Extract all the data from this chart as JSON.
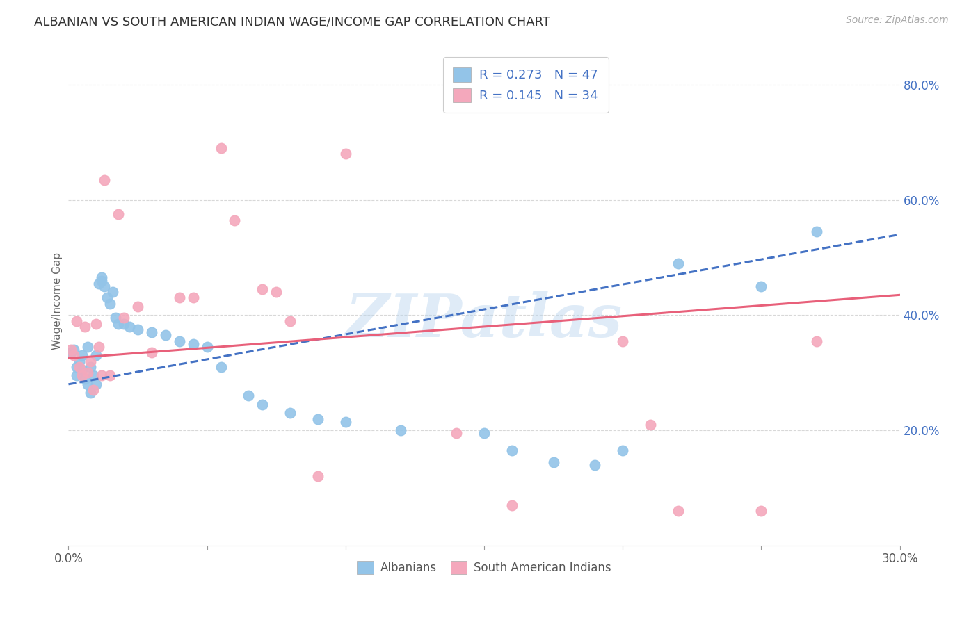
{
  "title": "ALBANIAN VS SOUTH AMERICAN INDIAN WAGE/INCOME GAP CORRELATION CHART",
  "source": "Source: ZipAtlas.com",
  "ylabel": "Wage/Income Gap",
  "xlim": [
    0.0,
    0.3
  ],
  "ylim": [
    0.0,
    0.85
  ],
  "x_ticks": [
    0.0,
    0.05,
    0.1,
    0.15,
    0.2,
    0.25,
    0.3
  ],
  "x_tick_labels": [
    "0.0%",
    "",
    "",
    "",
    "",
    "",
    "30.0%"
  ],
  "y_ticks_right": [
    0.2,
    0.4,
    0.6,
    0.8
  ],
  "y_tick_labels_right": [
    "20.0%",
    "40.0%",
    "60.0%",
    "80.0%"
  ],
  "albanian_color": "#93c4e8",
  "sai_color": "#f4a8bc",
  "line_albanian_color": "#4472c4",
  "line_sai_color": "#e8607a",
  "r_albanian": 0.273,
  "n_albanian": 47,
  "r_sai": 0.145,
  "n_sai": 34,
  "legend_color": "#4472c4",
  "albanian_x": [
    0.001,
    0.002,
    0.003,
    0.003,
    0.004,
    0.005,
    0.005,
    0.006,
    0.007,
    0.007,
    0.008,
    0.008,
    0.009,
    0.01,
    0.01,
    0.011,
    0.012,
    0.012,
    0.013,
    0.014,
    0.015,
    0.016,
    0.017,
    0.018,
    0.02,
    0.022,
    0.025,
    0.03,
    0.035,
    0.04,
    0.045,
    0.05,
    0.055,
    0.065,
    0.07,
    0.08,
    0.09,
    0.1,
    0.12,
    0.15,
    0.16,
    0.175,
    0.19,
    0.2,
    0.22,
    0.25,
    0.27
  ],
  "albanian_y": [
    0.335,
    0.34,
    0.31,
    0.295,
    0.32,
    0.305,
    0.33,
    0.29,
    0.345,
    0.28,
    0.31,
    0.265,
    0.295,
    0.33,
    0.28,
    0.455,
    0.465,
    0.46,
    0.45,
    0.43,
    0.42,
    0.44,
    0.395,
    0.385,
    0.385,
    0.38,
    0.375,
    0.37,
    0.365,
    0.355,
    0.35,
    0.345,
    0.31,
    0.26,
    0.245,
    0.23,
    0.22,
    0.215,
    0.2,
    0.195,
    0.165,
    0.145,
    0.14,
    0.165,
    0.49,
    0.45,
    0.545
  ],
  "sai_x": [
    0.001,
    0.002,
    0.003,
    0.004,
    0.005,
    0.006,
    0.007,
    0.008,
    0.009,
    0.01,
    0.011,
    0.012,
    0.013,
    0.015,
    0.018,
    0.02,
    0.025,
    0.03,
    0.04,
    0.045,
    0.055,
    0.06,
    0.07,
    0.075,
    0.08,
    0.09,
    0.1,
    0.14,
    0.16,
    0.2,
    0.21,
    0.22,
    0.25,
    0.27
  ],
  "sai_y": [
    0.34,
    0.33,
    0.39,
    0.31,
    0.295,
    0.38,
    0.3,
    0.32,
    0.27,
    0.385,
    0.345,
    0.295,
    0.635,
    0.295,
    0.575,
    0.395,
    0.415,
    0.335,
    0.43,
    0.43,
    0.69,
    0.565,
    0.445,
    0.44,
    0.39,
    0.12,
    0.68,
    0.195,
    0.07,
    0.355,
    0.21,
    0.06,
    0.06,
    0.355
  ],
  "watermark": "ZIPatlas",
  "background_color": "#ffffff",
  "grid_color": "#d8d8d8"
}
